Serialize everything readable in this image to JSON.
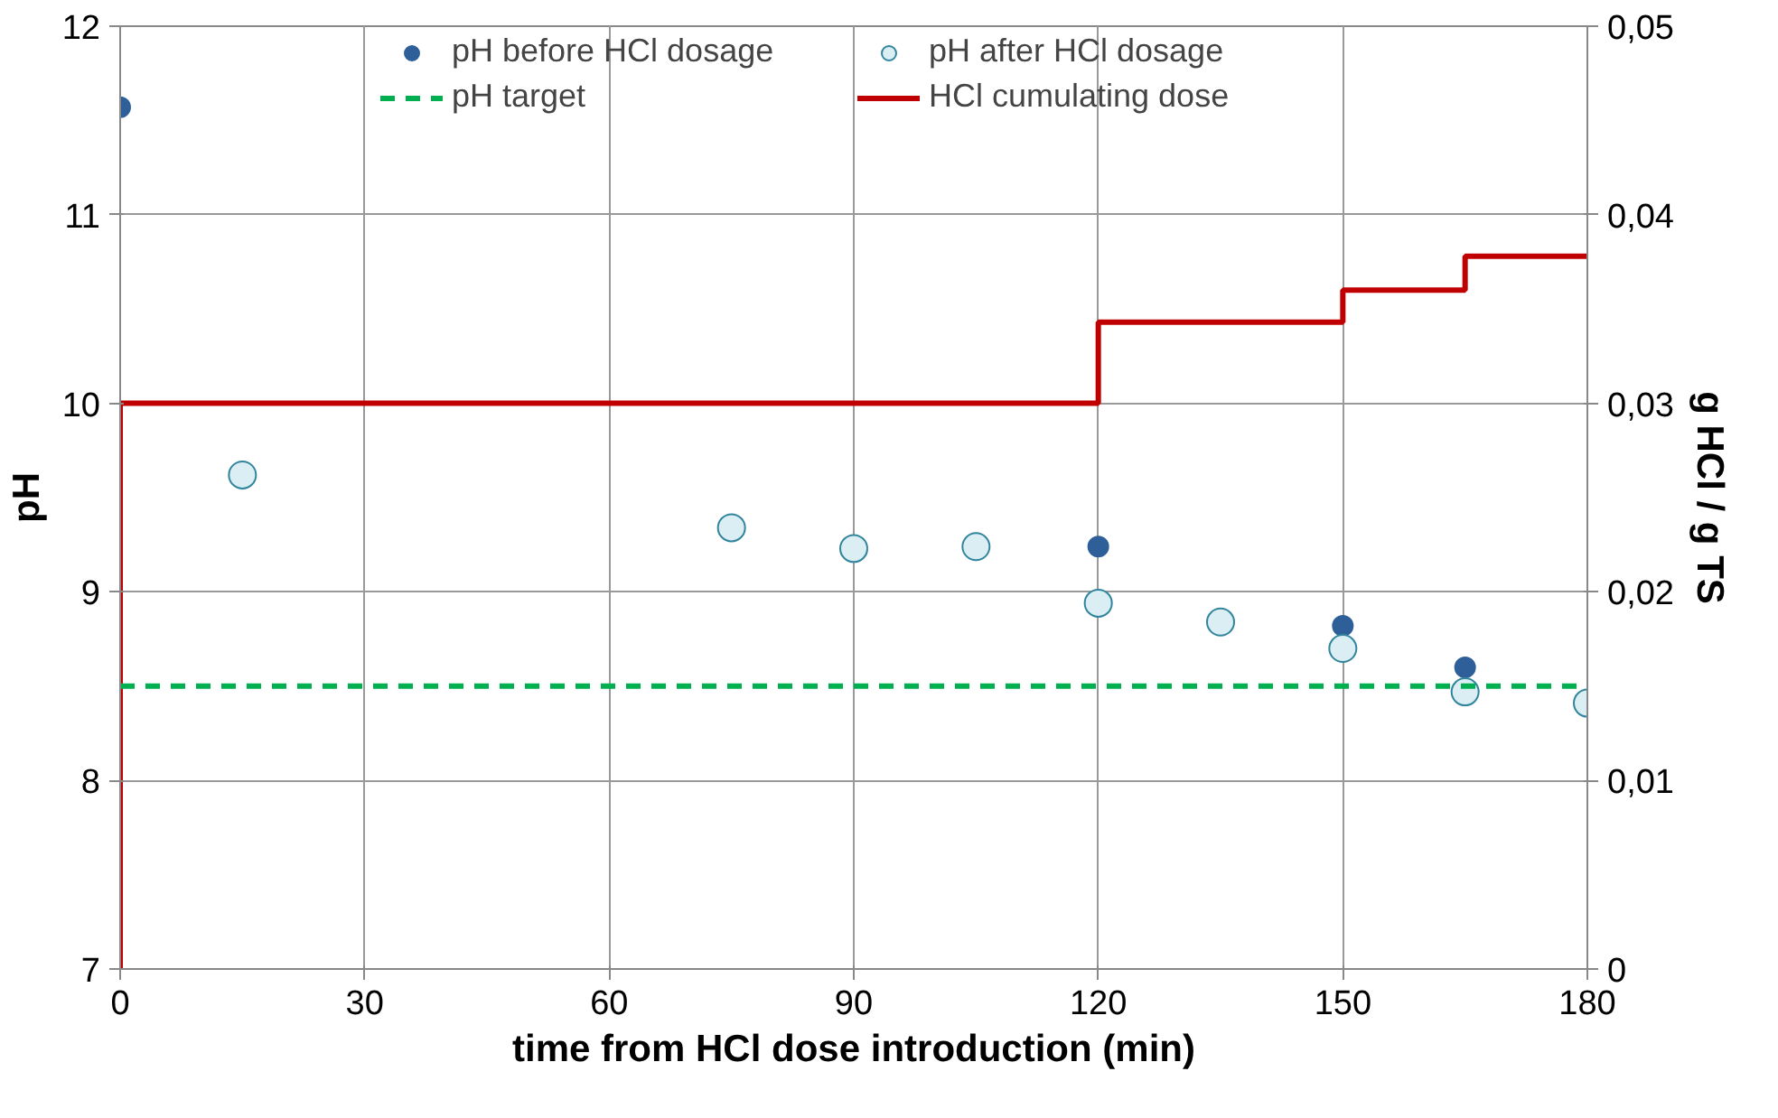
{
  "chart_data": {
    "type": "scatter",
    "xlabel": "time from HCl dose introduction (min)",
    "ylabel": "pH",
    "y2label": "g HCl / g TS",
    "xlim": [
      0,
      180
    ],
    "xticks": [
      0,
      30,
      60,
      90,
      120,
      150,
      180
    ],
    "ylim": [
      7,
      12
    ],
    "yticks": [
      7,
      8,
      9,
      10,
      11,
      12
    ],
    "y2lim": [
      0,
      0.05
    ],
    "y2ticks": [
      0,
      {
        "value": 0.01,
        "label": "0,01"
      },
      {
        "value": 0.02,
        "label": "0,02"
      },
      {
        "value": 0.03,
        "label": "0,03"
      },
      {
        "value": 0.04,
        "label": "0,04"
      },
      {
        "value": 0.05,
        "label": "0,05"
      }
    ],
    "grid": true,
    "legend": "top",
    "series": [
      {
        "name": "pH before HCl dosage",
        "type": "scatter",
        "marker": "circle",
        "color": "#2f5f98",
        "x": [
          0,
          120,
          150,
          165
        ],
        "values": [
          11.57,
          9.24,
          8.82,
          8.6
        ]
      },
      {
        "name": "pH after HCl dosage",
        "type": "scatter",
        "marker": "circle",
        "color": "#daeef3",
        "x": [
          15,
          75,
          90,
          105,
          120,
          135,
          150,
          165,
          180
        ],
        "values": [
          9.62,
          9.34,
          9.23,
          9.24,
          8.94,
          8.84,
          8.7,
          8.47,
          8.41
        ]
      },
      {
        "name": "HCl cumulating dose",
        "type": "step",
        "axis": "y2",
        "color": "#c00000",
        "line_style": "solid",
        "x": [
          0,
          0,
          120,
          150,
          165,
          180
        ],
        "values": [
          0,
          0.03,
          0.0343,
          0.036,
          0.0378,
          0.0378
        ]
      }
    ],
    "ref_lines": [
      {
        "axis": "y",
        "value": 8.5,
        "label": "pH target",
        "color": "#00b050",
        "line_style": "dashed"
      }
    ]
  }
}
